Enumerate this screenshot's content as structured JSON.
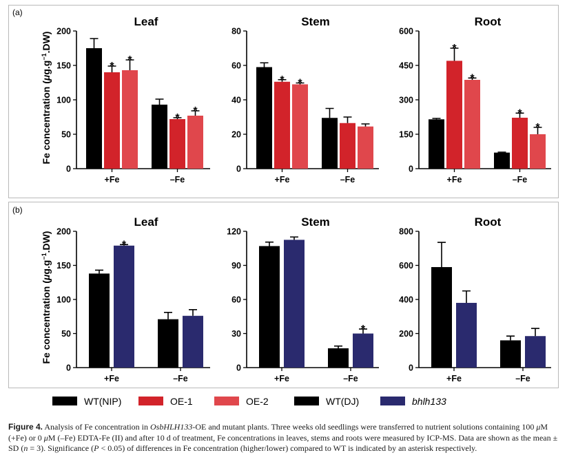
{
  "figure": {
    "panel_a_label": "(a)",
    "panel_b_label": "(b)",
    "ylabel_parts": [
      "Fe concentration (",
      "μ",
      "g.g",
      "−1",
      ".DW)"
    ],
    "colors": {
      "WT": "#000000",
      "OE1": "#d2232a",
      "OE2": "#e0474c",
      "mutant": "#2a2a6e"
    }
  },
  "legend": [
    {
      "label": "WT(NIP)",
      "color": "#000000",
      "italic": false
    },
    {
      "label": "OE-1",
      "color": "#d2232a",
      "italic": false
    },
    {
      "label": "OE-2",
      "color": "#e0474c",
      "italic": false
    },
    {
      "label": "WT(DJ)",
      "color": "#000000",
      "italic": false
    },
    {
      "label": "bhlh133",
      "color": "#2a2a6e",
      "italic": true
    }
  ],
  "chart_data": [
    {
      "panel": "a",
      "type": "bar",
      "title": "Leaf",
      "categories": [
        "+Fe",
        "–Fe"
      ],
      "ylim": [
        0,
        200
      ],
      "yticks": [
        0,
        50,
        100,
        150,
        200
      ],
      "series": [
        {
          "name": "WT(NIP)",
          "color": "#000000",
          "values": [
            175,
            93
          ],
          "errors": [
            14,
            8
          ],
          "significant": [
            false,
            false
          ]
        },
        {
          "name": "OE-1",
          "color": "#d2232a",
          "values": [
            140,
            72
          ],
          "errors": [
            9,
            2
          ],
          "significant": [
            true,
            true
          ]
        },
        {
          "name": "OE-2",
          "color": "#e0474c",
          "values": [
            143,
            77
          ],
          "errors": [
            15,
            7
          ],
          "significant": [
            true,
            true
          ]
        }
      ]
    },
    {
      "panel": "a",
      "type": "bar",
      "title": "Stem",
      "categories": [
        "+Fe",
        "–Fe"
      ],
      "ylim": [
        0,
        80
      ],
      "yticks": [
        0,
        20,
        40,
        60,
        80
      ],
      "series": [
        {
          "name": "WT(NIP)",
          "color": "#000000",
          "values": [
            59,
            29.5
          ],
          "errors": [
            2.5,
            5.5
          ],
          "significant": [
            false,
            false
          ]
        },
        {
          "name": "OE-1",
          "color": "#d2232a",
          "values": [
            50.5,
            26.5
          ],
          "errors": [
            1.2,
            3.5
          ],
          "significant": [
            true,
            false
          ]
        },
        {
          "name": "OE-2",
          "color": "#e0474c",
          "values": [
            49,
            24.5
          ],
          "errors": [
            0.8,
            1.5
          ],
          "significant": [
            true,
            false
          ]
        }
      ]
    },
    {
      "panel": "a",
      "type": "bar",
      "title": "Root",
      "categories": [
        "+Fe",
        "–Fe"
      ],
      "ylim": [
        0,
        600
      ],
      "yticks": [
        0,
        150,
        300,
        450,
        600
      ],
      "series": [
        {
          "name": "WT(NIP)",
          "color": "#000000",
          "values": [
            215,
            70
          ],
          "errors": [
            4,
            2
          ],
          "significant": [
            false,
            false
          ]
        },
        {
          "name": "OE-1",
          "color": "#d2232a",
          "values": [
            470,
            222
          ],
          "errors": [
            55,
            20
          ],
          "significant": [
            true,
            true
          ]
        },
        {
          "name": "OE-2",
          "color": "#e0474c",
          "values": [
            387,
            150
          ],
          "errors": [
            8,
            30
          ],
          "significant": [
            true,
            true
          ]
        }
      ]
    },
    {
      "panel": "b",
      "type": "bar",
      "title": "Leaf",
      "categories": [
        "+Fe",
        "–Fe"
      ],
      "ylim": [
        0,
        200
      ],
      "yticks": [
        0,
        50,
        100,
        150,
        200
      ],
      "series": [
        {
          "name": "WT(DJ)",
          "color": "#000000",
          "values": [
            138,
            71
          ],
          "errors": [
            5,
            10
          ],
          "significant": [
            false,
            false
          ]
        },
        {
          "name": "bhlh133",
          "color": "#2a2a6e",
          "values": [
            179,
            76
          ],
          "errors": [
            1.5,
            9
          ],
          "significant": [
            true,
            false
          ]
        }
      ]
    },
    {
      "panel": "b",
      "type": "bar",
      "title": "Stem",
      "categories": [
        "+Fe",
        "–Fe"
      ],
      "ylim": [
        0,
        120
      ],
      "yticks": [
        0,
        30,
        60,
        90,
        120
      ],
      "series": [
        {
          "name": "WT(DJ)",
          "color": "#000000",
          "values": [
            107,
            17
          ],
          "errors": [
            3.5,
            2
          ],
          "significant": [
            false,
            false
          ]
        },
        {
          "name": "bhlh133",
          "color": "#2a2a6e",
          "values": [
            112.5,
            30
          ],
          "errors": [
            2.5,
            4
          ],
          "significant": [
            false,
            true
          ]
        }
      ]
    },
    {
      "panel": "b",
      "type": "bar",
      "title": "Root",
      "categories": [
        "+Fe",
        "–Fe"
      ],
      "ylim": [
        0,
        800
      ],
      "yticks": [
        0,
        200,
        400,
        600,
        800
      ],
      "series": [
        {
          "name": "WT(DJ)",
          "color": "#000000",
          "values": [
            590,
            160
          ],
          "errors": [
            145,
            25
          ],
          "significant": [
            false,
            false
          ]
        },
        {
          "name": "bhlh133",
          "color": "#2a2a6e",
          "values": [
            380,
            185
          ],
          "errors": [
            70,
            45
          ],
          "significant": [
            false,
            false
          ]
        }
      ]
    }
  ],
  "caption": {
    "label": "Figure 4.",
    "t1": "  Analysis of Fe concentration in ",
    "gene": "OsbHLH133",
    "t2": "-OE and mutant plants. Three weeks old seedlings were transferred to nutrient solutions containing 100 ",
    "mu1": "μ",
    "t3": "M (+Fe) or 0 ",
    "mu2": "μ",
    "t4": "M (–Fe) EDTA-Fe (II) and after 10 d of treatment, Fe concentrations in leaves, stems and roots were measured by ICP-MS. Data are shown as the mean ± SD (",
    "n": "n",
    "t5": " = 3). Significance (",
    "p": "P",
    "t6": " < 0.05) of differences in Fe concentration (higher/lower) compared to WT is indicated by an asterisk respectively."
  }
}
